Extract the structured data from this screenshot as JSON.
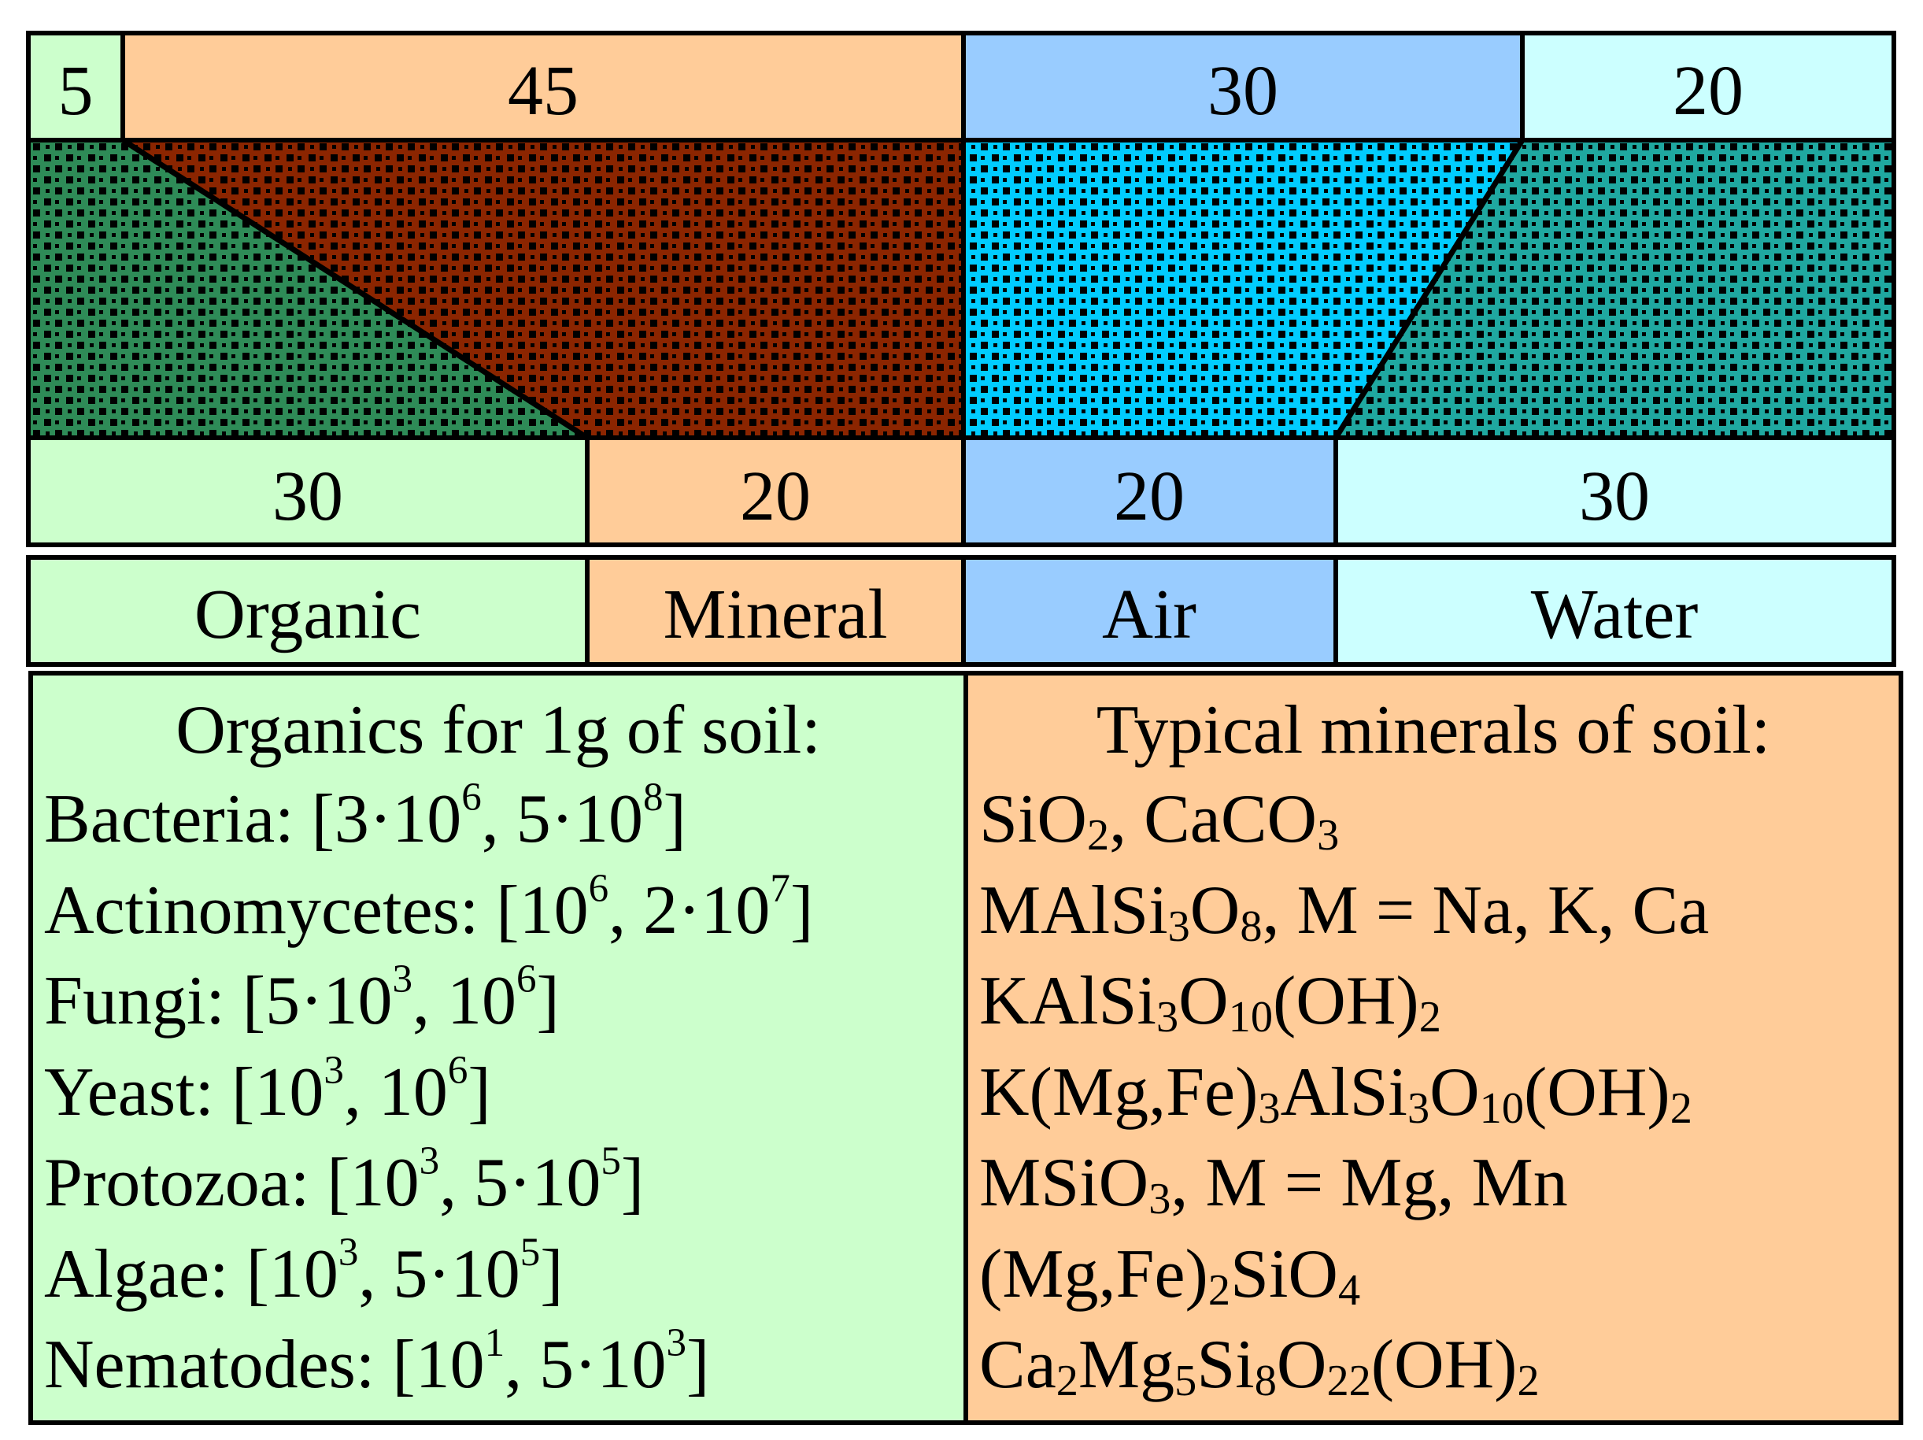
{
  "top_row": [
    {
      "value": "5",
      "color": "#ccffcc"
    },
    {
      "value": "45",
      "color": "#ffcc99"
    },
    {
      "value": "30",
      "color": "#99ccff"
    },
    {
      "value": "20",
      "color": "#ccffff"
    }
  ],
  "bottom_row": [
    {
      "value": "30",
      "color": "#ccffcc"
    },
    {
      "value": "20",
      "color": "#ffcc99"
    },
    {
      "value": "20",
      "color": "#99ccff"
    },
    {
      "value": "30",
      "color": "#ccffff"
    }
  ],
  "categories": [
    {
      "label": "Organic",
      "color": "#ccffcc"
    },
    {
      "label": "Mineral",
      "color": "#ffcc99"
    },
    {
      "label": "Air",
      "color": "#99ccff"
    },
    {
      "label": "Water",
      "color": "#ccffff"
    }
  ],
  "pattern_colors": {
    "organic": "#2e8b57",
    "mineral": "#8b2500",
    "air": "#00ccff",
    "water": "#1fa8a0",
    "checker": "#000000"
  },
  "organics": {
    "title": "Organics for 1g of soil:",
    "items": [
      {
        "name": "Bacteria:",
        "open": "[3·10",
        "exp1": "6",
        "mid": ", 5·10",
        "exp2": "8",
        "close": "]"
      },
      {
        "name": "Actinomycetes:",
        "open": "[10",
        "exp1": "6",
        "mid": ", 2·10",
        "exp2": "7",
        "close": "]"
      },
      {
        "name": "Fungi:",
        "open": "[5·10",
        "exp1": "3",
        "mid": ", 10",
        "exp2": "6",
        "close": "]"
      },
      {
        "name": "Yeast:",
        "open": "[10",
        "exp1": "3",
        "mid": ", 10",
        "exp2": "6",
        "close": "]"
      },
      {
        "name": "Protozoa:",
        "open": "[10",
        "exp1": "3",
        "mid": ", 5·10",
        "exp2": "5",
        "close": "]"
      },
      {
        "name": "Algae:",
        "open": "[10",
        "exp1": "3",
        "mid": ", 5·10",
        "exp2": "5",
        "close": "]"
      },
      {
        "name": "Nematodes:",
        "open": "[10",
        "exp1": "1",
        "mid": ", 5·10",
        "exp2": "3",
        "close": "]"
      }
    ]
  },
  "minerals": {
    "title": "Typical minerals of soil:",
    "items": [
      [
        {
          "t": "SiO"
        },
        {
          "sub": "2"
        },
        {
          "t": ", CaCO"
        },
        {
          "sub": "3"
        }
      ],
      [
        {
          "t": "MAlSi"
        },
        {
          "sub": "3"
        },
        {
          "t": "O"
        },
        {
          "sub": "8"
        },
        {
          "t": ", M = Na, K, Ca"
        }
      ],
      [
        {
          "t": "KAlSi"
        },
        {
          "sub": "3"
        },
        {
          "t": "O"
        },
        {
          "sub": "10"
        },
        {
          "t": "(OH)"
        },
        {
          "sub": "2"
        }
      ],
      [
        {
          "t": "K(Mg,Fe)"
        },
        {
          "sub": "3"
        },
        {
          "t": "AlSi"
        },
        {
          "sub": "3"
        },
        {
          "t": "O"
        },
        {
          "sub": "10"
        },
        {
          "t": "(OH)"
        },
        {
          "sub": "2"
        }
      ],
      [
        {
          "t": "MSiO"
        },
        {
          "sub": "3"
        },
        {
          "t": ", M = Mg, Mn"
        }
      ],
      [
        {
          "t": "(Mg,Fe)"
        },
        {
          "sub": "2"
        },
        {
          "t": "SiO"
        },
        {
          "sub": "4"
        }
      ],
      [
        {
          "t": "Ca"
        },
        {
          "sub": "2"
        },
        {
          "t": "Mg"
        },
        {
          "sub": "5"
        },
        {
          "t": "Si"
        },
        {
          "sub": "8"
        },
        {
          "t": "O"
        },
        {
          "sub": "22"
        },
        {
          "t": "(OH)"
        },
        {
          "sub": "2"
        }
      ]
    ]
  }
}
